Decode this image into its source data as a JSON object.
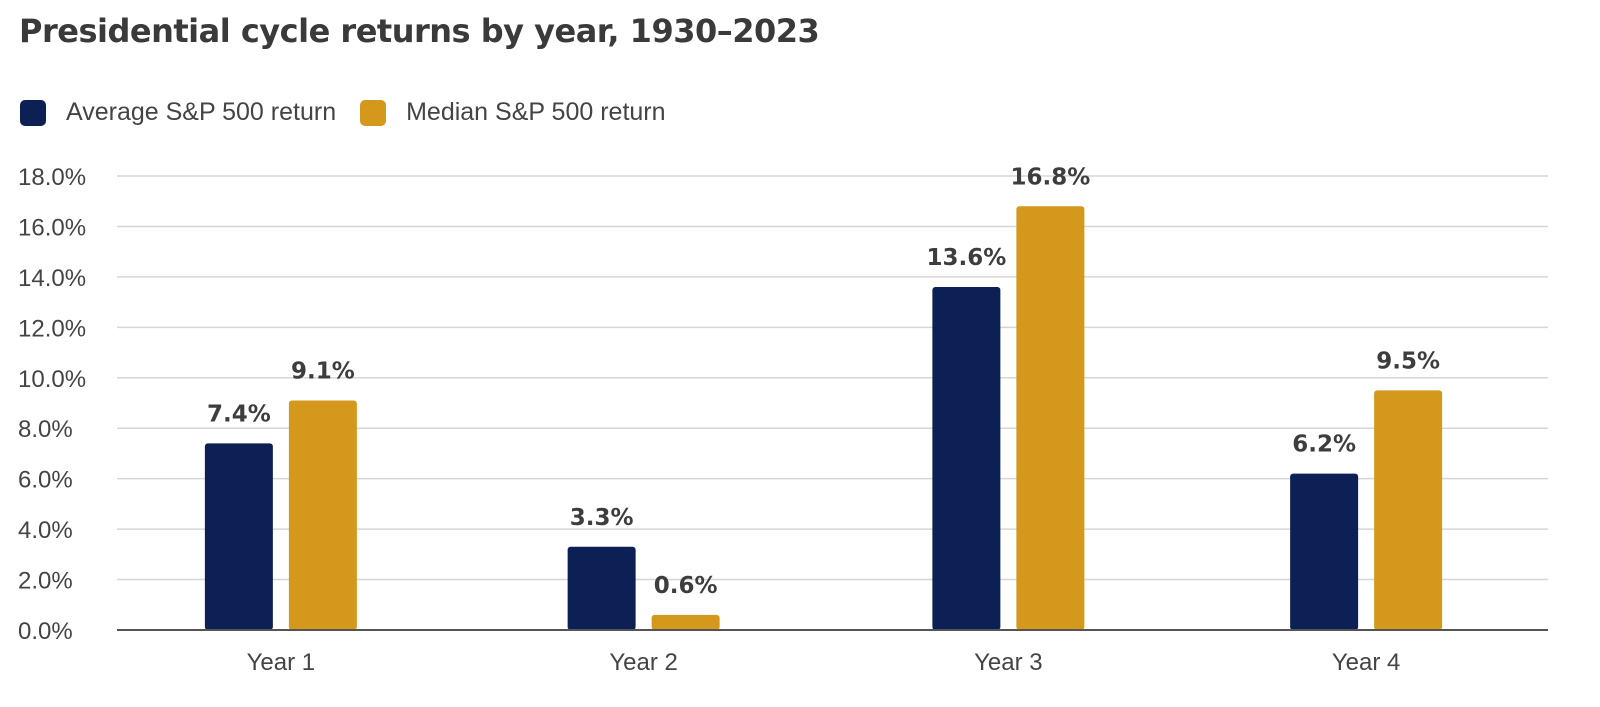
{
  "title": "Presidential cycle returns by year, 1930–2023",
  "colors": {
    "average": "#0d2055",
    "median": "#d4991c",
    "grid": "#d6d6d6",
    "axis": "#555555"
  },
  "chart_data": {
    "type": "bar",
    "title": "Presidential cycle returns by year, 1930–2023",
    "xlabel": "",
    "ylabel": "",
    "categories": [
      "Year 1",
      "Year 2",
      "Year 3",
      "Year 4"
    ],
    "series": [
      {
        "name": "Average S&P 500 return",
        "values": [
          7.4,
          3.3,
          13.6,
          6.2
        ],
        "labels": [
          "7.4%",
          "3.3%",
          "13.6%",
          "6.2%"
        ]
      },
      {
        "name": "Median S&P 500 return",
        "values": [
          9.1,
          0.6,
          16.8,
          9.5
        ],
        "labels": [
          "9.1%",
          "0.6%",
          "16.8%",
          "9.5%"
        ]
      }
    ],
    "ylim": [
      0,
      18
    ],
    "yticks": [
      "0.0%",
      "2.0%",
      "4.0%",
      "6.0%",
      "8.0%",
      "10.0%",
      "12.0%",
      "14.0%",
      "16.0%",
      "18.0%"
    ],
    "grid": true,
    "legend_position": "top-left"
  }
}
